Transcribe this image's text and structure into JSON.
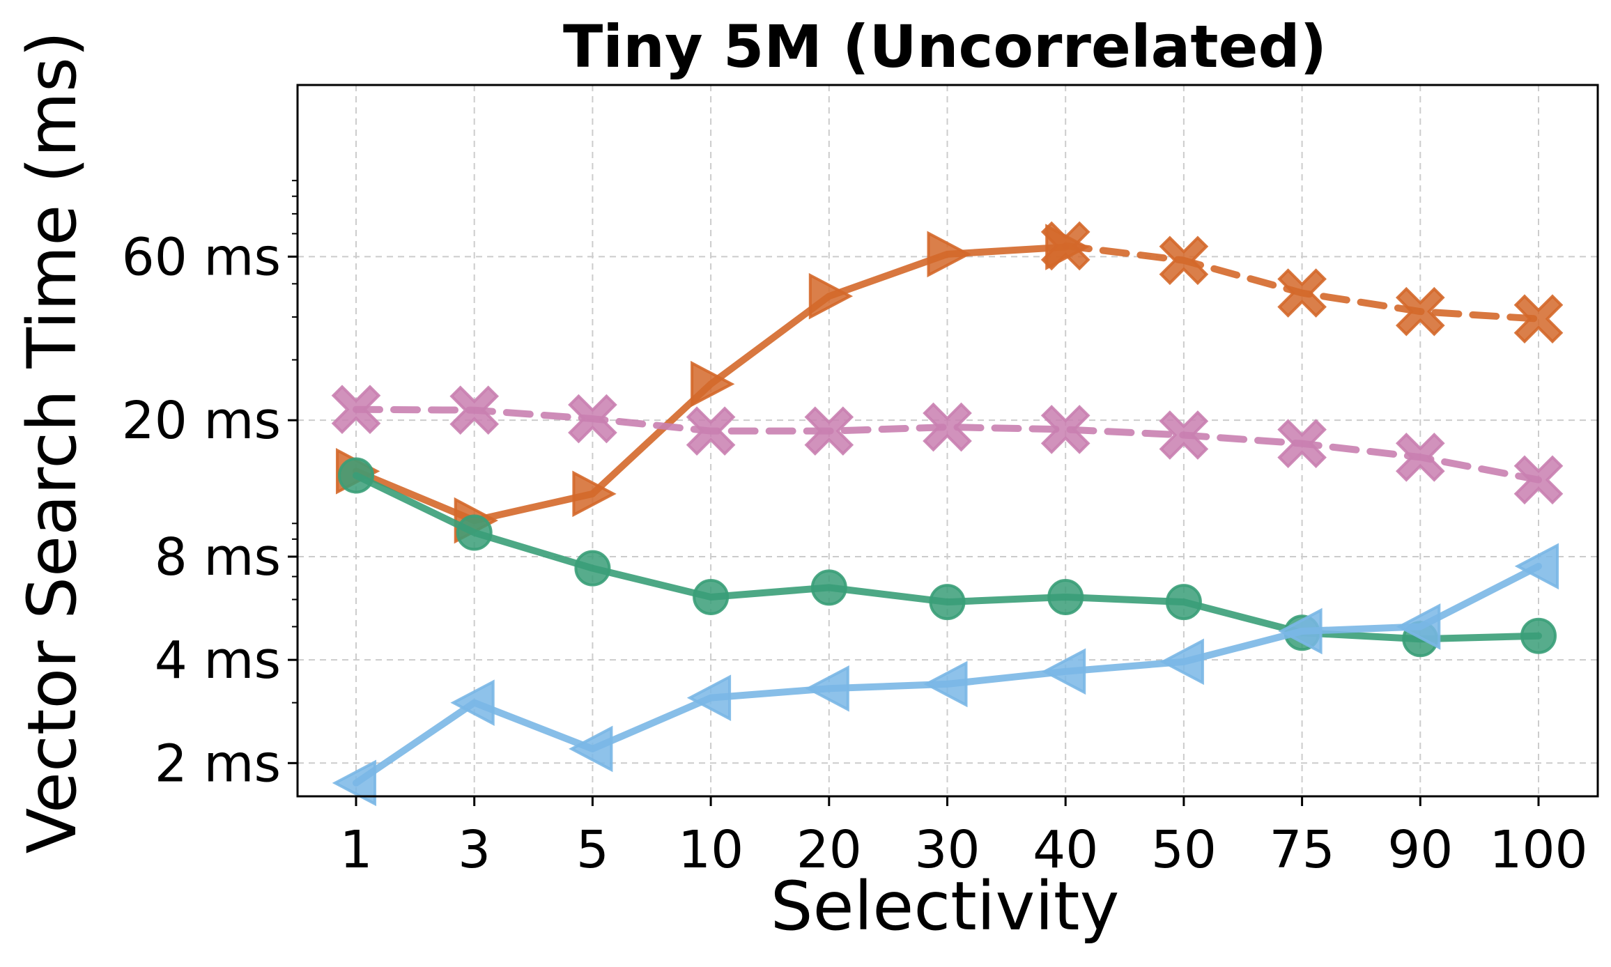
{
  "chart_data": {
    "type": "line",
    "title": "Tiny 5M (Uncorrelated)",
    "xlabel": "Selectivity",
    "ylabel": "Vector Search Time (ms)",
    "yscale": "log",
    "ylim": [
      1.6,
      190
    ],
    "categories": [
      "1",
      "3",
      "5",
      "10",
      "20",
      "30",
      "40",
      "50",
      "75",
      "90",
      "100"
    ],
    "yticks": [
      {
        "value": 2,
        "label": "2 ms"
      },
      {
        "value": 4,
        "label": "4 ms"
      },
      {
        "value": 8,
        "label": "8 ms"
      },
      {
        "value": 20,
        "label": "20 ms"
      },
      {
        "value": 60,
        "label": "60 ms"
      }
    ],
    "grid": true,
    "series": [
      {
        "name": "orange-triangle-right",
        "color": "#d4682a",
        "marker": "triangle-right",
        "dashed": false,
        "values": [
          14.2,
          10.2,
          12.2,
          25.5,
          46,
          61,
          64,
          null,
          null,
          null,
          null
        ]
      },
      {
        "name": "orange-x",
        "color": "#d4682a",
        "marker": "x",
        "dashed": true,
        "values": [
          null,
          null,
          null,
          null,
          null,
          null,
          64.5,
          58.5,
          47,
          41.5,
          39.5
        ]
      },
      {
        "name": "pink-x",
        "color": "#c97fb0",
        "marker": "x",
        "dashed": true,
        "values": [
          21.5,
          21.4,
          20.2,
          18.6,
          18.6,
          19.1,
          18.8,
          18.1,
          17.1,
          15.6,
          13.4
        ]
      },
      {
        "name": "green-circle",
        "color": "#3a9e78",
        "marker": "circle",
        "dashed": false,
        "values": [
          13.8,
          9.4,
          7.4,
          6.1,
          6.5,
          5.9,
          6.1,
          5.9,
          4.8,
          4.6,
          4.7
        ]
      },
      {
        "name": "blue-triangle-left",
        "color": "#7ab7e6",
        "marker": "triangle-left",
        "dashed": false,
        "values": [
          1.75,
          3.0,
          2.2,
          3.1,
          3.3,
          3.4,
          3.7,
          3.95,
          4.85,
          5.0,
          7.5
        ]
      }
    ]
  }
}
